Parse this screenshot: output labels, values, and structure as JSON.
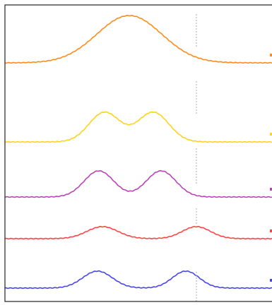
{
  "chart_data": {
    "type": "line",
    "xlim": [
      0,
      385
    ],
    "grid": false,
    "legend": "none",
    "reference_line_color": "#aaaaaa",
    "series": [
      {
        "color": "#ff8c1a",
        "baseline_y": 89,
        "reference_x": 278,
        "reference_y_top": 20,
        "reference_y_bottom": 68,
        "peaks": [
          {
            "center_x": 183,
            "height": 67,
            "width": 46
          }
        ]
      },
      {
        "color": "#ffd21f",
        "baseline_y": 201,
        "reference_x": 278,
        "reference_y_top": 115,
        "reference_y_bottom": 162,
        "peaks": [
          {
            "center_x": 148,
            "height": 42,
            "width": 22
          },
          {
            "center_x": 217,
            "height": 42,
            "width": 22
          }
        ]
      },
      {
        "color": "#b944b9",
        "baseline_y": 279,
        "reference_x": 278,
        "reference_y_top": 210,
        "reference_y_bottom": 262,
        "peaks": [
          {
            "center_x": 140,
            "height": 37,
            "width": 21
          },
          {
            "center_x": 228,
            "height": 37,
            "width": 21
          }
        ]
      },
      {
        "color": "#ff4444",
        "baseline_y": 338,
        "reference_x": 278,
        "reference_y_top": 295,
        "reference_y_bottom": 318,
        "peaks": [
          {
            "center_x": 145,
            "height": 17,
            "width": 22
          },
          {
            "center_x": 278,
            "height": 17,
            "width": 20
          }
        ]
      },
      {
        "color": "#4646ee",
        "baseline_y": 408,
        "reference_x": 278,
        "reference_y_top": 385,
        "reference_y_bottom": 428,
        "peaks": [
          {
            "center_x": 138,
            "height": 24,
            "width": 21
          },
          {
            "center_x": 263,
            "height": 24,
            "width": 19
          }
        ]
      }
    ]
  }
}
